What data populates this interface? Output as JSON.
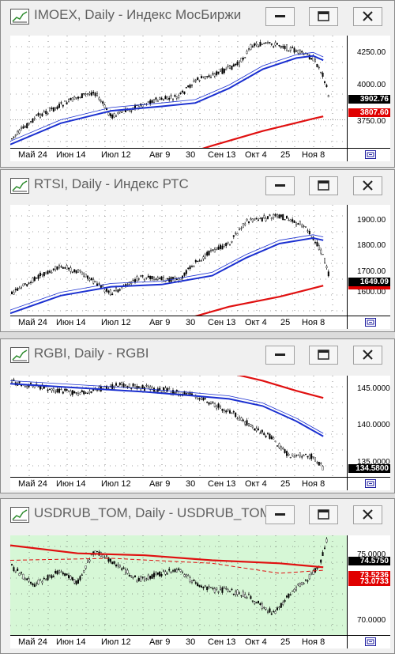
{
  "windows": [
    {
      "title": "IMOEX, Daily - Индекс МосБиржи",
      "green": false,
      "y_ticks": [
        "4250.00",
        "4000.00",
        "3750.00"
      ],
      "price_black": "3902.76",
      "price_red": "3807.60",
      "x_labels": [
        "Май 24",
        "Июн 14",
        "Июл 12",
        "Авг 9",
        "30",
        "Сен 13",
        "Окт 4",
        "25",
        "Ноя 8"
      ]
    },
    {
      "title": "RTSI, Daily - Индекс РТС",
      "green": false,
      "y_ticks": [
        "1900.00",
        "1800.00",
        "1700.00",
        "1600.00"
      ],
      "price_black": "1649.09",
      "price_red": "",
      "x_labels": [
        "Май 24",
        "Июн 14",
        "Июл 12",
        "Авг 9",
        "30",
        "Сен 13",
        "Окт 4",
        "25",
        "Ноя 8"
      ]
    },
    {
      "title": "RGBI, Daily - RGBI",
      "green": false,
      "y_ticks": [
        "145.0000",
        "140.0000",
        "135.0000"
      ],
      "price_black": "134.5800",
      "price_red": "",
      "x_labels": [
        "Май 24",
        "Июн 14",
        "Июл 12",
        "Авг 9",
        "30",
        "Сен 13",
        "Окт 4",
        "25",
        "Ноя 8"
      ]
    },
    {
      "title": "USDRUB_TOM, Daily - USDRUB_TOM",
      "green": true,
      "y_ticks": [
        "75.0000",
        "70.0000"
      ],
      "price_black": "74.5750",
      "price_red": "73.5236",
      "price_red2": "73.0733",
      "x_labels": [
        "Май 24",
        "Июн 14",
        "Июл 12",
        "Авг 9",
        "30",
        "Сен 13",
        "Окт 4",
        "25",
        "Ноя 8"
      ]
    }
  ],
  "colors": {
    "ma_fast": "#1a2fd0",
    "ma_slow": "#e01010",
    "candles": "#000000",
    "plot_bg": "#ffffff",
    "plot_bg_green": "#d6f7d6"
  },
  "icons": {
    "chart": "chart-icon",
    "minimize": "minimize-icon",
    "maximize": "maximize-icon",
    "close": "close-icon",
    "nav": "scroll-end-icon"
  }
}
